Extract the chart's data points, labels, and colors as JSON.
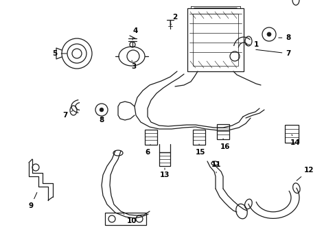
{
  "background_color": "#ffffff",
  "line_color": "#1a1a1a",
  "text_color": "#000000",
  "fig_width": 4.89,
  "fig_height": 3.6,
  "dpi": 100,
  "lw": 0.9,
  "fontsize": 7.5
}
